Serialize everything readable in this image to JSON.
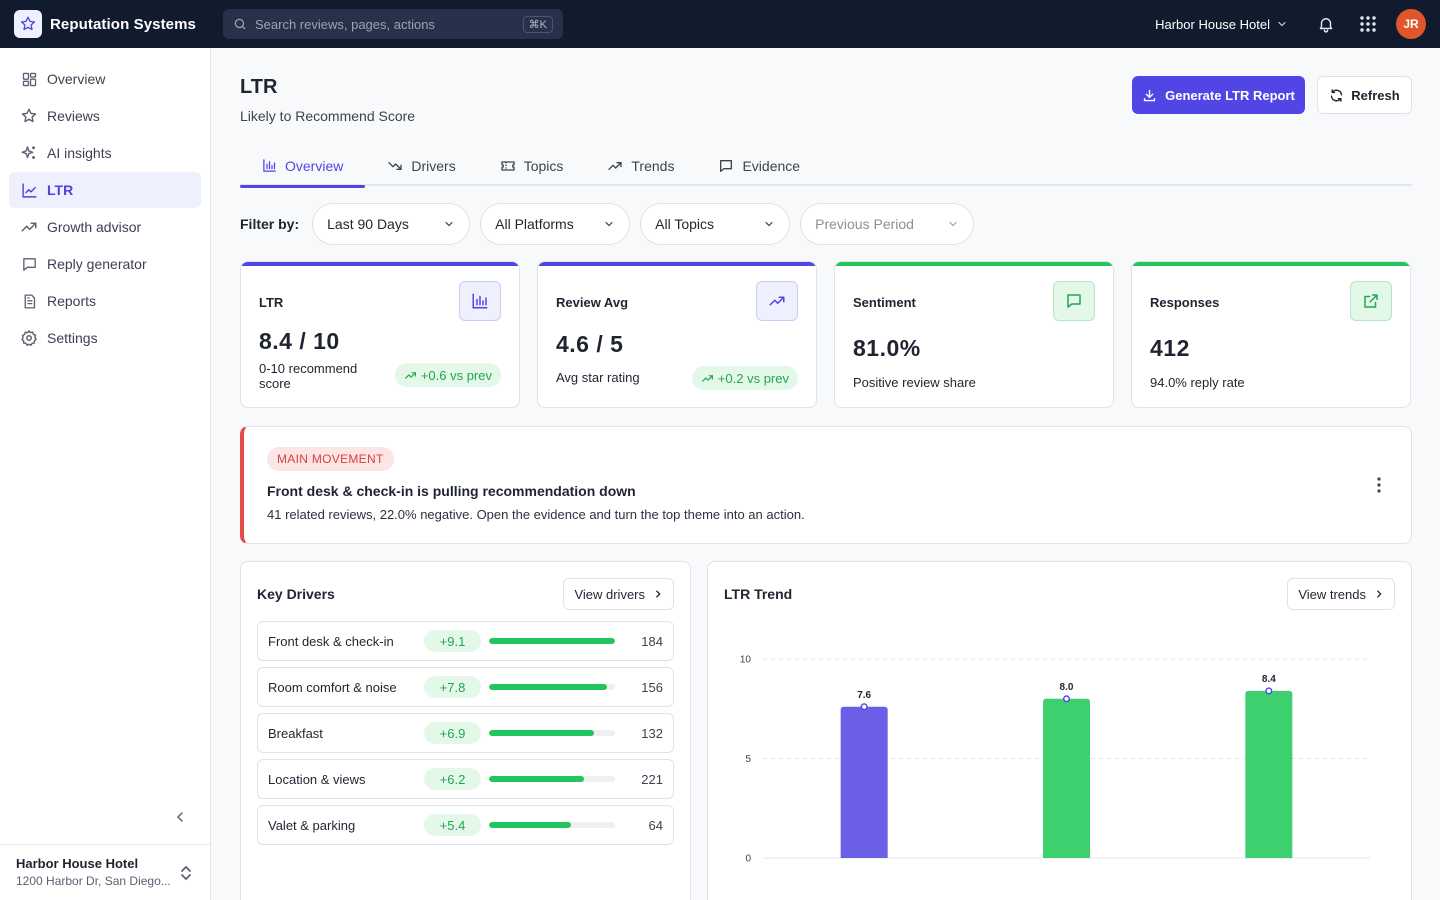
{
  "app": {
    "name": "Reputation Systems"
  },
  "search": {
    "placeholder": "Search reviews, pages, actions",
    "shortcut": "⌘K"
  },
  "topbar": {
    "hotel": "Harbor House Hotel",
    "avatar_initials": "JR"
  },
  "sidebar": {
    "items": [
      {
        "label": "Overview",
        "icon": "grid-icon"
      },
      {
        "label": "Reviews",
        "icon": "star-icon"
      },
      {
        "label": "AI insights",
        "icon": "sparkles-icon"
      },
      {
        "label": "LTR",
        "icon": "line-chart-icon",
        "active": true
      },
      {
        "label": "Growth advisor",
        "icon": "trending-up-icon"
      },
      {
        "label": "Reply generator",
        "icon": "message-icon"
      },
      {
        "label": "Reports",
        "icon": "document-icon"
      },
      {
        "label": "Settings",
        "icon": "gear-icon"
      }
    ],
    "footer": {
      "name": "Harbor House Hotel",
      "address": "1200 Harbor Dr, San Diego..."
    }
  },
  "page": {
    "title": "LTR",
    "subtitle": "Likely to Recommend Score",
    "primary_button": "Generate LTR Report",
    "secondary_button": "Refresh"
  },
  "tabs": [
    {
      "label": "Overview",
      "icon": "bar-chart-icon",
      "active": true
    },
    {
      "label": "Drivers",
      "icon": "trending-down-icon"
    },
    {
      "label": "Topics",
      "icon": "ticket-icon"
    },
    {
      "label": "Trends",
      "icon": "trending-up-icon"
    },
    {
      "label": "Evidence",
      "icon": "message-icon"
    }
  ],
  "filters": {
    "label": "Filter by:",
    "period": "Last 90 Days",
    "platform": "All Platforms",
    "topic": "All Topics",
    "compare": "Previous Period"
  },
  "kpis": [
    {
      "label": "LTR",
      "value": "8.4 / 10",
      "note": "0-10 recommend score",
      "badge": "+0.6 vs prev",
      "icon": "bar-chart-icon"
    },
    {
      "label": "Review Avg",
      "value": "4.6 / 5",
      "note": "Avg star rating",
      "badge": "+0.2 vs prev",
      "icon": "trending-up-icon"
    },
    {
      "label": "Sentiment",
      "value": "81.0%",
      "note": "Positive review share",
      "icon": "message-icon"
    },
    {
      "label": "Responses",
      "value": "412",
      "note": "94.0% reply rate",
      "icon": "external-link-icon"
    }
  ],
  "colors": {
    "accent": "#4f46e5",
    "positive": "#22c55e",
    "negative": "#e34b4b",
    "topbar": "#111b2e",
    "chart_purple": "#6a5fe6",
    "chart_green": "#3ecf6e"
  },
  "alert": {
    "tag": "MAIN MOVEMENT",
    "title": "Front desk & check-in is pulling recommendation down",
    "body": "41 related reviews, 22.0% negative. Open the evidence and turn the top theme into an action."
  },
  "drivers": {
    "title": "Key Drivers",
    "button": "View drivers",
    "items": [
      {
        "name": "Front desk & check-in",
        "impact": "+9.1",
        "share": 1.0,
        "count": "184"
      },
      {
        "name": "Room comfort & noise",
        "impact": "+7.8",
        "share": 0.94,
        "count": "156"
      },
      {
        "name": "Breakfast",
        "impact": "+6.9",
        "share": 0.83,
        "count": "132"
      },
      {
        "name": "Location & views",
        "impact": "+6.2",
        "share": 0.75,
        "count": "221"
      },
      {
        "name": "Valet & parking",
        "impact": "+5.4",
        "share": 0.65,
        "count": "64"
      }
    ]
  },
  "trend": {
    "title": "LTR Trend",
    "button": "View trends"
  },
  "chart_data": {
    "type": "bar",
    "categories": [
      "",
      "",
      ""
    ],
    "values": [
      7.6,
      8.0,
      8.4
    ],
    "data_labels": [
      "7.6",
      "8.0",
      "8.4"
    ],
    "bar_colors": [
      "#6a5fe6",
      "#3ecf6e",
      "#3ecf6e"
    ],
    "yticks": [
      0,
      5,
      10
    ],
    "ylim": [
      0,
      10
    ],
    "grid": true,
    "title": "",
    "xlabel": "",
    "ylabel": ""
  }
}
